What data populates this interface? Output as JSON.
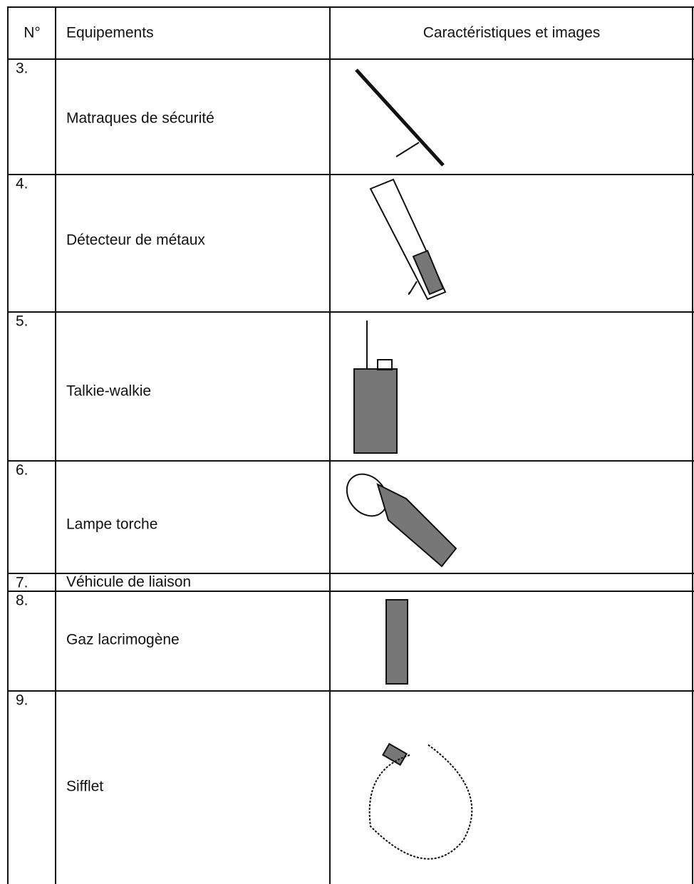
{
  "header": {
    "columns": [
      "N°",
      "Equipements",
      "Caractéristiques et images"
    ]
  },
  "table": {
    "rows": [
      [
        "3.",
        "Matraques de sécurité"
      ],
      [
        "4.",
        "Détecteur de métaux"
      ],
      [
        "5.",
        "Talkie-walkie"
      ],
      [
        "6.",
        "Lampe torche"
      ],
      [
        "7.",
        "Véhicule de liaison"
      ],
      [
        "8.",
        "Gaz lacrimogène"
      ],
      [
        "9.",
        "Sifflet"
      ]
    ]
  }
}
